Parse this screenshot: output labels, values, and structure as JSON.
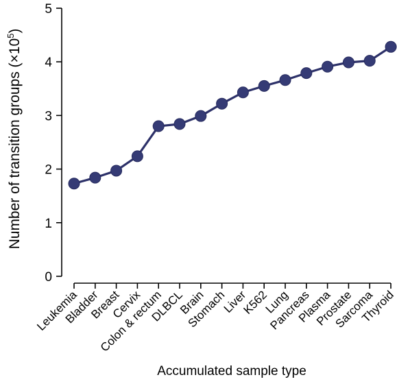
{
  "chart_data": {
    "type": "line",
    "title": "",
    "xlabel": "Accumulated sample type",
    "ylabel": "Number of transition groups (×10⁵)",
    "ylabel_main": "Number of transition groups (×10",
    "ylabel_sup": "5",
    "ylabel_close": ")",
    "categories": [
      "Leukemia",
      "Bladder",
      "Breast",
      "Cervix",
      "Colon & rectum",
      "DLBCL",
      "Brain",
      "Stomach",
      "Liver",
      "K562",
      "Lung",
      "Pancreas",
      "Plasma",
      "Prostate",
      "Sarcoma",
      "Thyroid"
    ],
    "values": [
      1.73,
      1.84,
      1.97,
      2.24,
      2.8,
      2.84,
      2.99,
      3.22,
      3.43,
      3.55,
      3.66,
      3.79,
      3.91,
      3.99,
      4.02,
      4.28
    ],
    "ylim": [
      0,
      5
    ],
    "yticks": [
      0,
      1,
      2,
      3,
      4,
      5
    ],
    "ytick_labels": [
      "0",
      "1",
      "2",
      "3",
      "4",
      "5"
    ],
    "grid": false,
    "legend": "none",
    "line_color": "#2d3169",
    "marker_color": "#353b75"
  }
}
